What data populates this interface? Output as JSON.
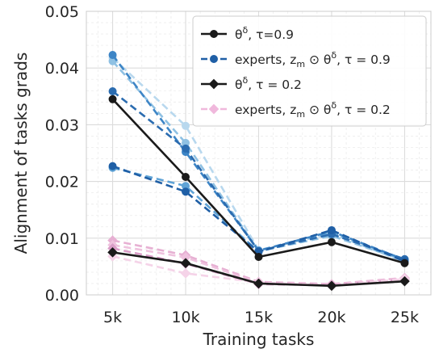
{
  "chart_data": {
    "type": "line",
    "xlabel": "Training tasks",
    "ylabel": "Alignment of tasks grads",
    "x": [
      5,
      10,
      15,
      20,
      25
    ],
    "xtick_labels": [
      "5k",
      "10k",
      "15k",
      "20k",
      "25k"
    ],
    "xlim": [
      3.2,
      26.8
    ],
    "ylim": [
      0.0,
      0.05
    ],
    "yticks": [
      0.0,
      0.01,
      0.02,
      0.03,
      0.04,
      0.05
    ],
    "ytick_labels": [
      "0.00",
      "0.01",
      "0.02",
      "0.03",
      "0.04",
      "0.05"
    ],
    "grid": true,
    "minor_grid": true,
    "legend_position": "upper-right",
    "legend": [
      {
        "label_main": "θ",
        "label_sup": "δ",
        "label_rest": ", τ=0.9",
        "color": "#1a1a1a",
        "marker": "circle",
        "dash": false
      },
      {
        "label_main": "experts, z",
        "label_sub": "m",
        "label_mid": " ⊙ θ",
        "label_sup": "δ",
        "label_rest": ", τ = 0.9",
        "color": "#1f5fa6",
        "marker": "circle",
        "dash": true
      },
      {
        "label_main": "θ",
        "label_sup": "δ",
        "label_rest": ", τ = 0.2",
        "color": "#1a1a1a",
        "marker": "diamond",
        "dash": false
      },
      {
        "label_main": "experts, z",
        "label_sub": "m",
        "label_mid": " ⊙ θ",
        "label_sup": "δ",
        "label_rest": ", τ = 0.2",
        "color": "#f0b8dc",
        "marker": "diamond",
        "dash": true
      }
    ],
    "series": [
      {
        "group": "experts_tau09",
        "color": "#b8d8ee",
        "marker": "circle",
        "dash": true,
        "values": [
          0.0418,
          0.0298,
          0.0079,
          0.0108,
          0.0058
        ]
      },
      {
        "group": "experts_tau09",
        "color": "#8fc1e3",
        "marker": "circle",
        "dash": true,
        "values": [
          0.0412,
          0.0268,
          0.0077,
          0.0104,
          0.0061
        ]
      },
      {
        "group": "experts_tau09",
        "color": "#5fa3d6",
        "marker": "circle",
        "dash": true,
        "values": [
          0.0224,
          0.0192,
          0.0076,
          0.011,
          0.006
        ]
      },
      {
        "group": "experts_tau09",
        "color": "#3d85c6",
        "marker": "circle",
        "dash": true,
        "values": [
          0.0423,
          0.0252,
          0.0078,
          0.0112,
          0.0062
        ]
      },
      {
        "group": "experts_tau09",
        "color": "#2b6cb0",
        "marker": "circle",
        "dash": true,
        "values": [
          0.0359,
          0.0258,
          0.0077,
          0.0107,
          0.0063
        ]
      },
      {
        "group": "experts_tau09",
        "color": "#1f5fa6",
        "marker": "circle",
        "dash": true,
        "values": [
          0.0227,
          0.0182,
          0.0076,
          0.0114,
          0.0059
        ]
      },
      {
        "group": "experts_tau02",
        "color": "#e7b0d3",
        "marker": "diamond",
        "dash": true,
        "values": [
          0.0096,
          0.007,
          0.0023,
          0.0019,
          0.003
        ]
      },
      {
        "group": "experts_tau02",
        "color": "#efc2de",
        "marker": "diamond",
        "dash": true,
        "values": [
          0.0088,
          0.0066,
          0.0021,
          0.0018,
          0.0029
        ]
      },
      {
        "group": "experts_tau02",
        "color": "#d99cc7",
        "marker": "diamond",
        "dash": true,
        "values": [
          0.0082,
          0.0055,
          0.0019,
          0.0017,
          0.0027
        ]
      },
      {
        "group": "experts_tau02",
        "color": "#f5d3e8",
        "marker": "diamond",
        "dash": true,
        "values": [
          0.0068,
          0.0038,
          0.0022,
          0.0016,
          0.0028
        ]
      },
      {
        "group": "theta_tau09",
        "color": "#1a1a1a",
        "marker": "circle",
        "dash": false,
        "values": [
          0.0345,
          0.0208,
          0.0067,
          0.0093,
          0.0056
        ]
      },
      {
        "group": "theta_tau02",
        "color": "#1a1a1a",
        "marker": "diamond",
        "dash": false,
        "values": [
          0.0075,
          0.0056,
          0.002,
          0.0016,
          0.0024
        ]
      }
    ]
  }
}
